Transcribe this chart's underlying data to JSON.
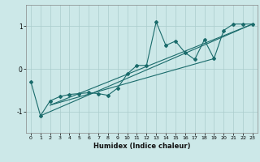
{
  "title": "",
  "xlabel": "Humidex (Indice chaleur)",
  "ylabel": "",
  "xlim": [
    -0.5,
    23.5
  ],
  "ylim": [
    -1.5,
    1.5
  ],
  "xticks": [
    0,
    1,
    2,
    3,
    4,
    5,
    6,
    7,
    8,
    9,
    10,
    11,
    12,
    13,
    14,
    15,
    16,
    17,
    18,
    19,
    20,
    21,
    22,
    23
  ],
  "yticks": [
    -1,
    0,
    1
  ],
  "bg_color": "#cce8e8",
  "line_color": "#1a6b6b",
  "grid_color": "#aacccc",
  "main_line_x": [
    0,
    1,
    2,
    3,
    4,
    5,
    6,
    7,
    8,
    9,
    10,
    11,
    12,
    13,
    14,
    15,
    16,
    17,
    18,
    19,
    20,
    21,
    22,
    23
  ],
  "main_line_y": [
    -0.3,
    -1.1,
    -0.75,
    -0.65,
    -0.6,
    -0.58,
    -0.56,
    -0.58,
    -0.62,
    -0.45,
    -0.12,
    0.08,
    0.08,
    1.1,
    0.55,
    0.65,
    0.38,
    0.22,
    0.68,
    0.24,
    0.9,
    1.05,
    1.05,
    1.05
  ],
  "trend1_x": [
    1,
    23
  ],
  "trend1_y": [
    -1.1,
    1.05
  ],
  "trend2_x": [
    2,
    23
  ],
  "trend2_y": [
    -0.85,
    1.05
  ],
  "trend3_x": [
    2,
    19
  ],
  "trend3_y": [
    -0.85,
    0.24
  ],
  "figsize": [
    3.2,
    2.0
  ],
  "dpi": 100
}
